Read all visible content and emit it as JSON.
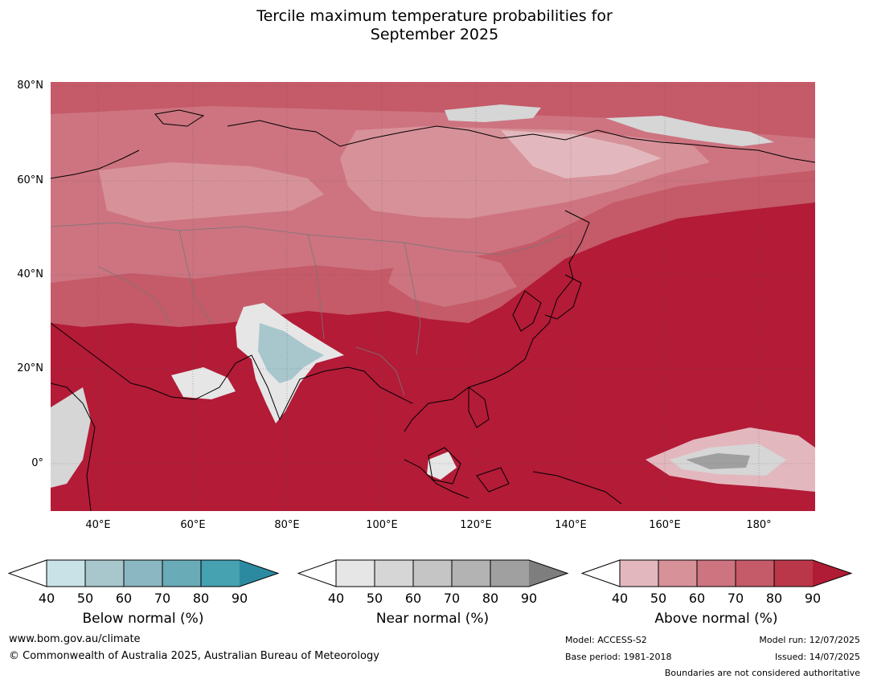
{
  "title": {
    "line1": "Tercile maximum temperature probabilities for",
    "line2": "September 2025"
  },
  "map": {
    "lat_labels": [
      "80°N",
      "60°N",
      "40°N",
      "20°N",
      "0°"
    ],
    "lon_labels": [
      "40°E",
      "60°E",
      "80°E",
      "100°E",
      "120°E",
      "140°E",
      "160°E",
      "180°"
    ]
  },
  "legend": {
    "below": {
      "title": "Below normal (%)",
      "ticks": [
        "40",
        "50",
        "60",
        "70",
        "80",
        "90"
      ],
      "colors": [
        "#c9e2e8",
        "#a7c7cd",
        "#8ab7c1",
        "#6aabb8",
        "#46a1b0",
        "#2c8aa0"
      ]
    },
    "near": {
      "title": "Near normal (%)",
      "ticks": [
        "40",
        "50",
        "60",
        "70",
        "80",
        "90"
      ],
      "colors": [
        "#e6e6e6",
        "#d6d6d6",
        "#c5c5c5",
        "#b3b3b3",
        "#a0a0a0",
        "#7e7e7e"
      ]
    },
    "above": {
      "title": "Above normal (%)",
      "ticks": [
        "40",
        "50",
        "60",
        "70",
        "80",
        "90"
      ],
      "colors": [
        "#e2b8be",
        "#d79199",
        "#cd7480",
        "#c55a68",
        "#b93748",
        "#b01b35"
      ]
    }
  },
  "footer": {
    "website": "www.bom.gov.au/climate",
    "copyright": "© Commonwealth of Australia 2025, Australian Bureau of Meteorology",
    "model": "Model: ACCESS-S2",
    "base_period": "Base period: 1981-2018",
    "model_run": "Model run: 12/07/2025",
    "issued": "Issued: 14/07/2025",
    "disclaimer": "Boundaries are not considered authoritative"
  }
}
